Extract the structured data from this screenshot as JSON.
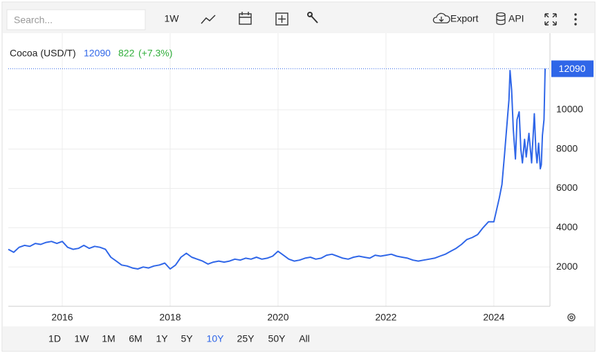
{
  "toolbar": {
    "search_placeholder": "Search...",
    "interval": "1W",
    "export": "Export",
    "api": "API"
  },
  "chart_data": {
    "type": "line",
    "title": "Cocoa (USD/T)",
    "change": 822,
    "change_pct": {
      "value": 7.3,
      "label": "(+7.3%)"
    },
    "series": [
      {
        "name": "Cocoa",
        "color": "#2f66e8",
        "x": [
          2015.0,
          2015.1,
          2015.2,
          2015.3,
          2015.4,
          2015.5,
          2015.6,
          2015.7,
          2015.8,
          2015.9,
          2016.0,
          2016.1,
          2016.2,
          2016.3,
          2016.4,
          2016.5,
          2016.6,
          2016.7,
          2016.8,
          2016.9,
          2017.0,
          2017.1,
          2017.2,
          2017.3,
          2017.4,
          2017.5,
          2017.6,
          2017.7,
          2017.8,
          2017.9,
          2018.0,
          2018.1,
          2018.2,
          2018.3,
          2018.4,
          2018.5,
          2018.6,
          2018.7,
          2018.8,
          2018.9,
          2019.0,
          2019.1,
          2019.2,
          2019.3,
          2019.4,
          2019.5,
          2019.6,
          2019.7,
          2019.8,
          2019.9,
          2020.0,
          2020.1,
          2020.2,
          2020.3,
          2020.4,
          2020.5,
          2020.6,
          2020.7,
          2020.8,
          2020.9,
          2021.0,
          2021.1,
          2021.2,
          2021.3,
          2021.4,
          2021.5,
          2021.6,
          2021.7,
          2021.8,
          2021.9,
          2022.0,
          2022.1,
          2022.2,
          2022.3,
          2022.4,
          2022.5,
          2022.6,
          2022.7,
          2022.8,
          2022.9,
          2023.0,
          2023.1,
          2023.2,
          2023.3,
          2023.4,
          2023.5,
          2023.6,
          2023.7,
          2023.8,
          2023.9,
          2024.0,
          2024.1,
          2024.15,
          2024.2,
          2024.25,
          2024.28,
          2024.3,
          2024.33,
          2024.36,
          2024.4,
          2024.43,
          2024.47,
          2024.5,
          2024.53,
          2024.57,
          2024.6,
          2024.65,
          2024.7,
          2024.75,
          2024.78,
          2024.8,
          2024.83,
          2024.86,
          2024.88,
          2024.9,
          2024.93,
          2024.95
        ],
        "values": [
          2900,
          2750,
          3000,
          3100,
          3050,
          3200,
          3150,
          3250,
          3300,
          3200,
          3300,
          3000,
          2900,
          2950,
          3100,
          2950,
          3050,
          3000,
          2900,
          2500,
          2300,
          2100,
          2050,
          1950,
          1900,
          2000,
          1950,
          2050,
          2100,
          2200,
          1900,
          2100,
          2500,
          2700,
          2500,
          2400,
          2300,
          2150,
          2250,
          2300,
          2250,
          2300,
          2400,
          2350,
          2450,
          2400,
          2500,
          2400,
          2450,
          2550,
          2800,
          2600,
          2400,
          2300,
          2350,
          2450,
          2500,
          2400,
          2450,
          2600,
          2650,
          2550,
          2450,
          2400,
          2500,
          2550,
          2500,
          2450,
          2600,
          2550,
          2600,
          2650,
          2550,
          2500,
          2450,
          2350,
          2300,
          2350,
          2400,
          2450,
          2550,
          2650,
          2800,
          2950,
          3150,
          3400,
          3500,
          3650,
          4000,
          4300,
          4300,
          5500,
          6200,
          7800,
          9500,
          10500,
          12000,
          11000,
          9000,
          7500,
          9500,
          9900,
          8000,
          7300,
          8500,
          7600,
          8800,
          7300,
          9800,
          7900,
          7300,
          8300,
          7000,
          7200,
          8700,
          9500,
          12090
        ]
      }
    ],
    "xlim": [
      2015.0,
      2025.04
    ],
    "xticks": [
      2016,
      2018,
      2020,
      2022,
      2024
    ],
    "ylim": [
      0,
      13900
    ],
    "yticks": [
      2000,
      4000,
      6000,
      8000,
      10000
    ],
    "grid": true
  },
  "ranges": {
    "buttons": [
      "1D",
      "1W",
      "1M",
      "6M",
      "1Y",
      "5Y",
      "10Y",
      "25Y",
      "50Y",
      "All"
    ],
    "active": 6
  }
}
